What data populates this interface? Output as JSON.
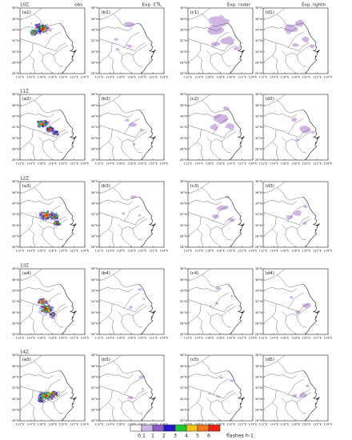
{
  "columns": [
    {
      "key": "a",
      "title": "obs"
    },
    {
      "key": "b",
      "title": "Exp. CTL"
    },
    {
      "key": "c",
      "title": "Exp. radar"
    },
    {
      "key": "d",
      "title": "Exp. lightn"
    }
  ],
  "rows": [
    {
      "time": "10Z",
      "labels": [
        "(a1)",
        "(b1)",
        "(c1)",
        "(d1)"
      ]
    },
    {
      "time": "11Z",
      "labels": [
        "(a2)",
        "(b2)",
        "(c2)",
        "(d2)"
      ]
    },
    {
      "time": "12Z",
      "labels": [
        "(a3)",
        "(b3)",
        "(c3)",
        "(d3)"
      ]
    },
    {
      "time": "13Z",
      "labels": [
        "(a4)",
        "(b4)",
        "(c4)",
        "(d4)"
      ]
    },
    {
      "time": "14Z",
      "labels": [
        "(a5)",
        "(b5)",
        "(c5)",
        "(d5)"
      ]
    }
  ],
  "lat_ticks": [
    "38°N",
    "36°N",
    "34°N",
    "32°N",
    "30°N",
    "28°N",
    "26°N"
  ],
  "lon_ticks": [
    "112°E",
    "114°E",
    "116°E",
    "118°E",
    "120°E",
    "122°E",
    "124°E"
  ],
  "colorbar": {
    "tick_labels": [
      "0.1",
      "1",
      "2",
      "3",
      "4",
      "5",
      "6"
    ],
    "colors": [
      "#ffffff",
      "#cfb4e4",
      "#8a5cc8",
      "#2418c8",
      "#22c836",
      "#f2c21a",
      "#f07a1c",
      "#e82418"
    ],
    "unit": "flashes h-1"
  }
}
